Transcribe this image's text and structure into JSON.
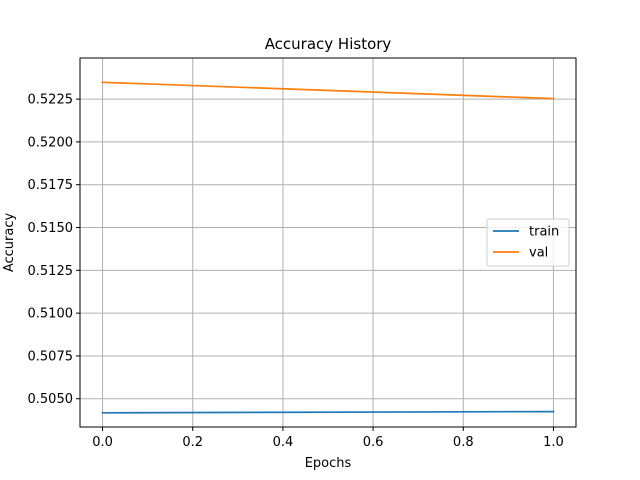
{
  "chart_data": {
    "type": "line",
    "title": "Accuracy History",
    "xlabel": "Epochs",
    "ylabel": "Accuracy",
    "xlim": [
      -0.05,
      1.05
    ],
    "ylim": [
      0.50335,
      0.5249
    ],
    "xticks": [
      0.0,
      0.2,
      0.4,
      0.6,
      0.8,
      1.0
    ],
    "xtick_labels": [
      "0.0",
      "0.2",
      "0.4",
      "0.6",
      "0.8",
      "1.0"
    ],
    "yticks": [
      0.505,
      0.5075,
      0.51,
      0.5125,
      0.515,
      0.5175,
      0.52,
      0.5225
    ],
    "ytick_labels": [
      "0.5050",
      "0.5075",
      "0.5100",
      "0.5125",
      "0.5150",
      "0.5175",
      "0.5200",
      "0.5225"
    ],
    "grid": true,
    "legend_position": "center-right",
    "series": [
      {
        "name": "train",
        "color": "#1f77b4",
        "x": [
          0,
          1
        ],
        "y": [
          0.50418,
          0.50425
        ]
      },
      {
        "name": "val",
        "color": "#ff7f0e",
        "x": [
          0,
          1
        ],
        "y": [
          0.52348,
          0.52253
        ]
      }
    ]
  }
}
